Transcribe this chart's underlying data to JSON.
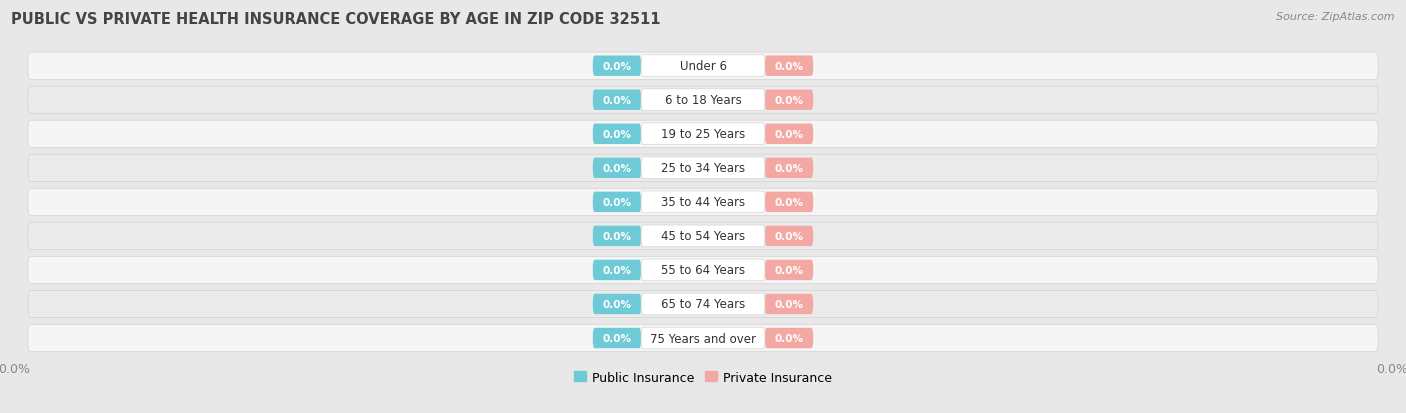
{
  "title": "PUBLIC VS PRIVATE HEALTH INSURANCE COVERAGE BY AGE IN ZIP CODE 32511",
  "source": "Source: ZipAtlas.com",
  "categories": [
    "Under 6",
    "6 to 18 Years",
    "19 to 25 Years",
    "25 to 34 Years",
    "35 to 44 Years",
    "45 to 54 Years",
    "55 to 64 Years",
    "65 to 74 Years",
    "75 Years and over"
  ],
  "public_values": [
    0.0,
    0.0,
    0.0,
    0.0,
    0.0,
    0.0,
    0.0,
    0.0,
    0.0
  ],
  "private_values": [
    0.0,
    0.0,
    0.0,
    0.0,
    0.0,
    0.0,
    0.0,
    0.0,
    0.0
  ],
  "public_color": "#6ecad6",
  "private_color": "#f4a8a4",
  "public_label": "Public Insurance",
  "private_label": "Private Insurance",
  "background_color": "#e8e8e8",
  "row_light_color": "#f5f5f5",
  "row_dark_color": "#ebebeb",
  "title_color": "#444444",
  "source_color": "#888888",
  "label_color": "#333333",
  "value_color": "#ffffff",
  "tick_color": "#888888"
}
